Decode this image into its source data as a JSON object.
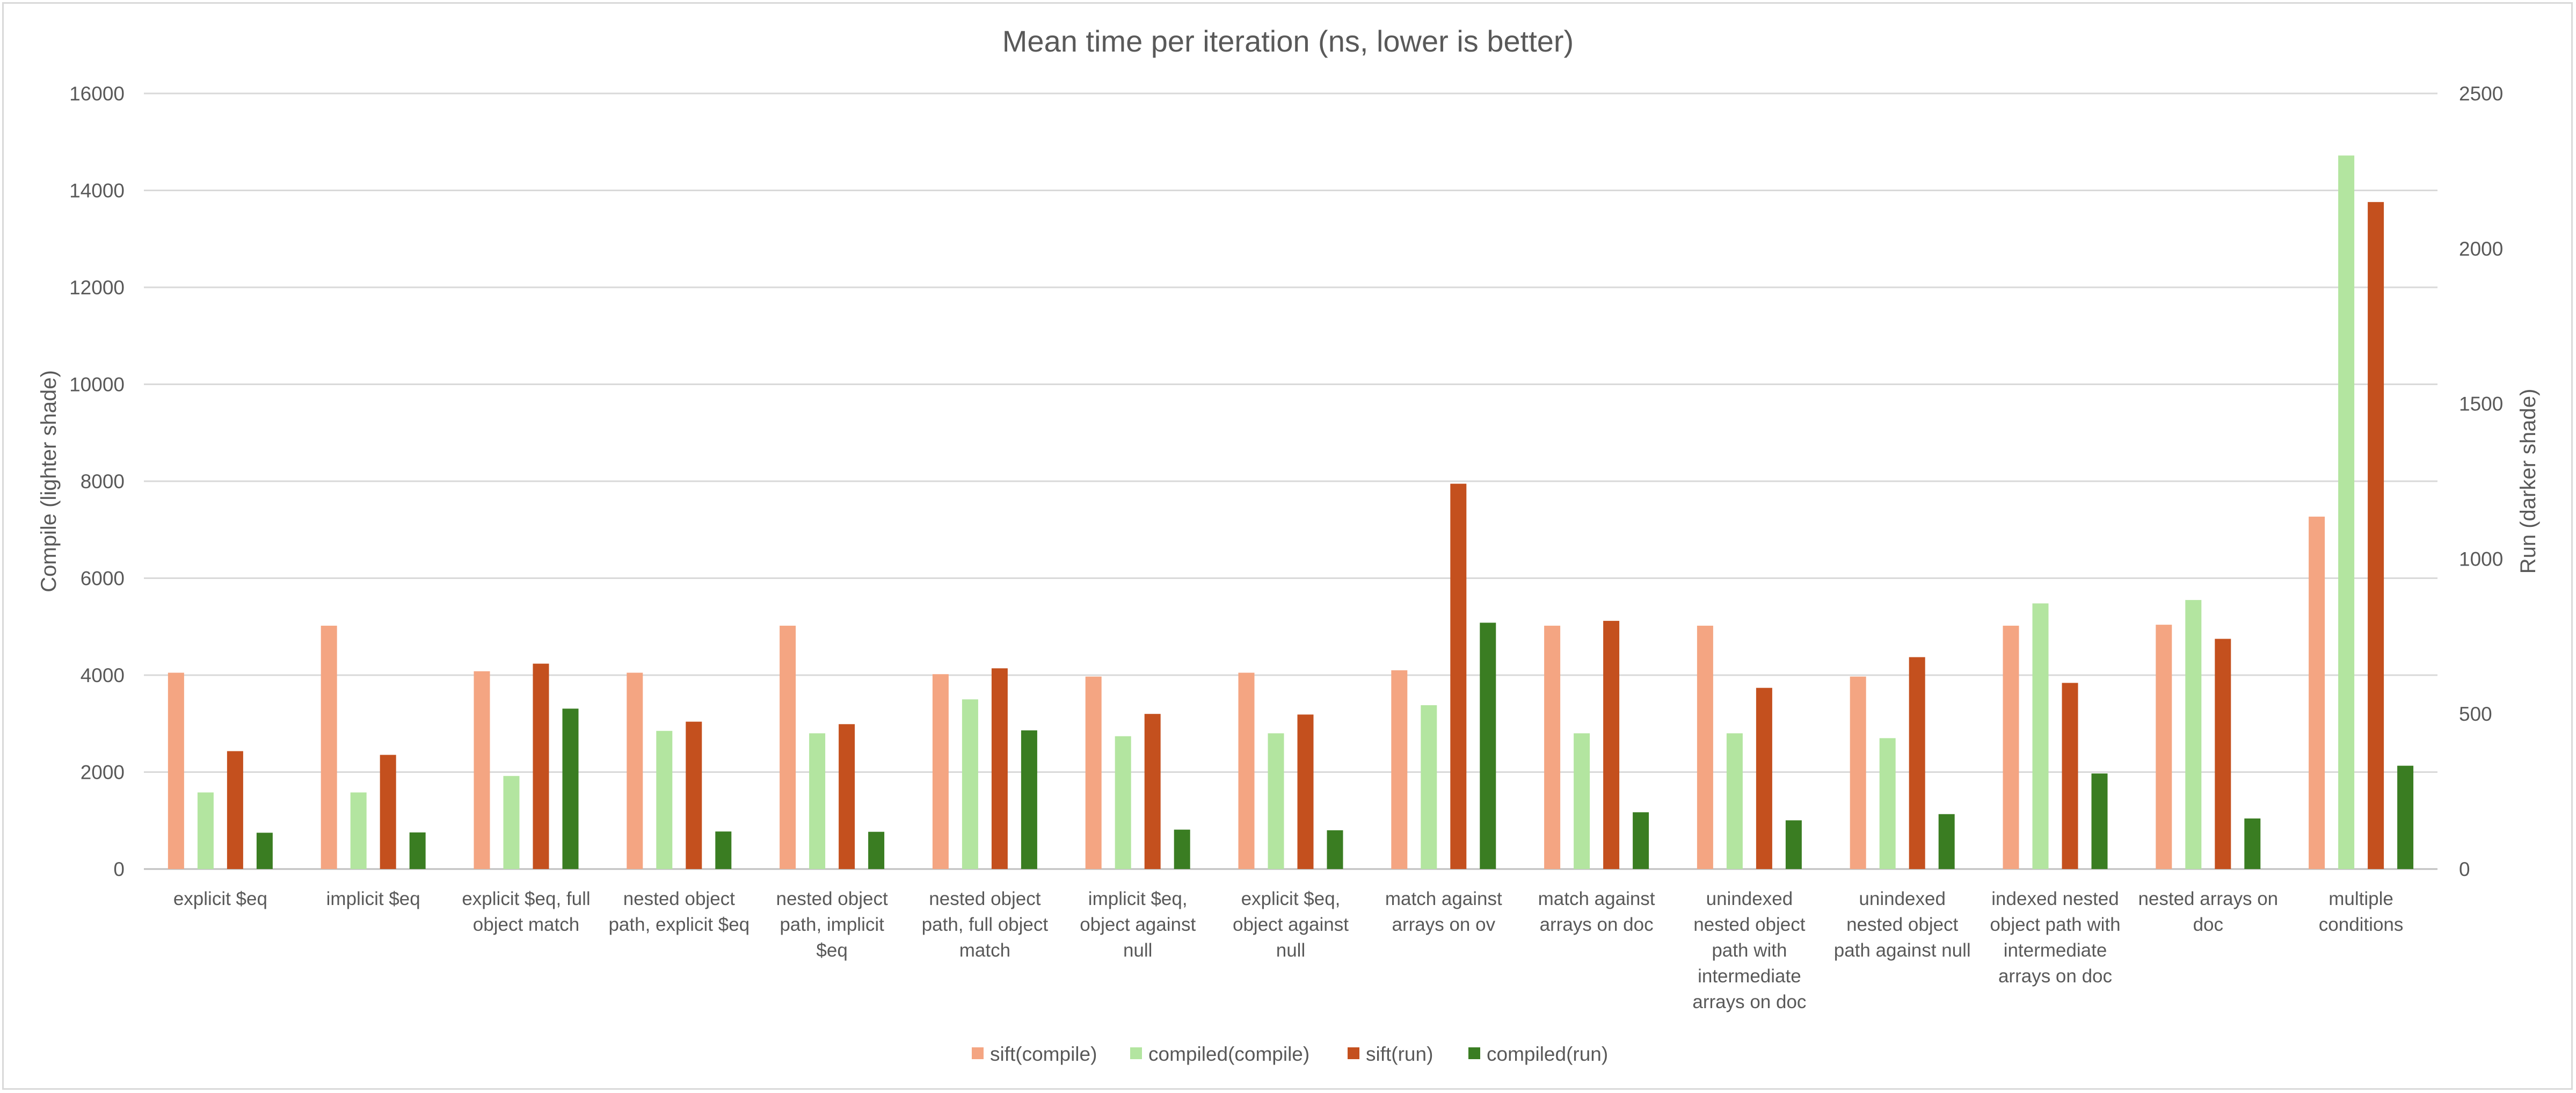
{
  "chart_data": {
    "type": "bar",
    "title": "Mean time per iteration (ns, lower is better)",
    "ylabel": "Compile (lighter shade)",
    "y2label": "Run (darker shade)",
    "ylim": [
      0,
      16000
    ],
    "y2lim": [
      0,
      2500
    ],
    "yticks": [
      "0",
      "2000",
      "4000",
      "6000",
      "8000",
      "10000",
      "12000",
      "14000",
      "16000"
    ],
    "y2ticks": [
      "0",
      "500",
      "1000",
      "1500",
      "2000",
      "2500"
    ],
    "grid": true,
    "legend_position": "bottom",
    "categories": [
      [
        "explicit $eq"
      ],
      [
        "implicit $eq"
      ],
      [
        "explicit $eq, full",
        "object match"
      ],
      [
        "nested object",
        "path, explicit $eq"
      ],
      [
        "nested object",
        "path, implicit",
        "$eq"
      ],
      [
        "nested object",
        "path, full object",
        "match"
      ],
      [
        "implicit $eq,",
        "object against",
        "null"
      ],
      [
        "explicit $eq,",
        "object against",
        "null"
      ],
      [
        "match against",
        "arrays on ov"
      ],
      [
        "match against",
        "arrays on doc"
      ],
      [
        "unindexed",
        "nested object",
        "path with",
        "intermediate",
        "arrays on doc"
      ],
      [
        "unindexed",
        "nested object",
        "path against null"
      ],
      [
        "indexed nested",
        "object path with",
        "intermediate",
        "arrays on doc"
      ],
      [
        "nested arrays on",
        "doc"
      ],
      [
        "multiple",
        "conditions"
      ]
    ],
    "series": [
      {
        "name": "sift(compile)",
        "axis": "left",
        "color": "#f4a582",
        "values": [
          4050,
          5020,
          4080,
          4050,
          5020,
          4020,
          3970,
          4050,
          4100,
          5020,
          5020,
          3970,
          5020,
          5040,
          7270
        ]
      },
      {
        "name": "compiled(compile)",
        "axis": "left",
        "color": "#b3e5a0",
        "values": [
          1580,
          1580,
          1920,
          2850,
          2800,
          3500,
          2740,
          2800,
          3380,
          2800,
          2800,
          2700,
          5480,
          5550,
          14720
        ]
      },
      {
        "name": "sift(run)",
        "axis": "right",
        "color": "#c4501e",
        "values": [
          380,
          368,
          662,
          475,
          467,
          647,
          500,
          498,
          1242,
          800,
          584,
          683,
          600,
          742,
          2150
        ]
      },
      {
        "name": "compiled(run)",
        "axis": "right",
        "color": "#3a7d22",
        "values": [
          117,
          118,
          517,
          121,
          120,
          447,
          127,
          125,
          794,
          183,
          157,
          177,
          308,
          163,
          333
        ]
      }
    ]
  }
}
